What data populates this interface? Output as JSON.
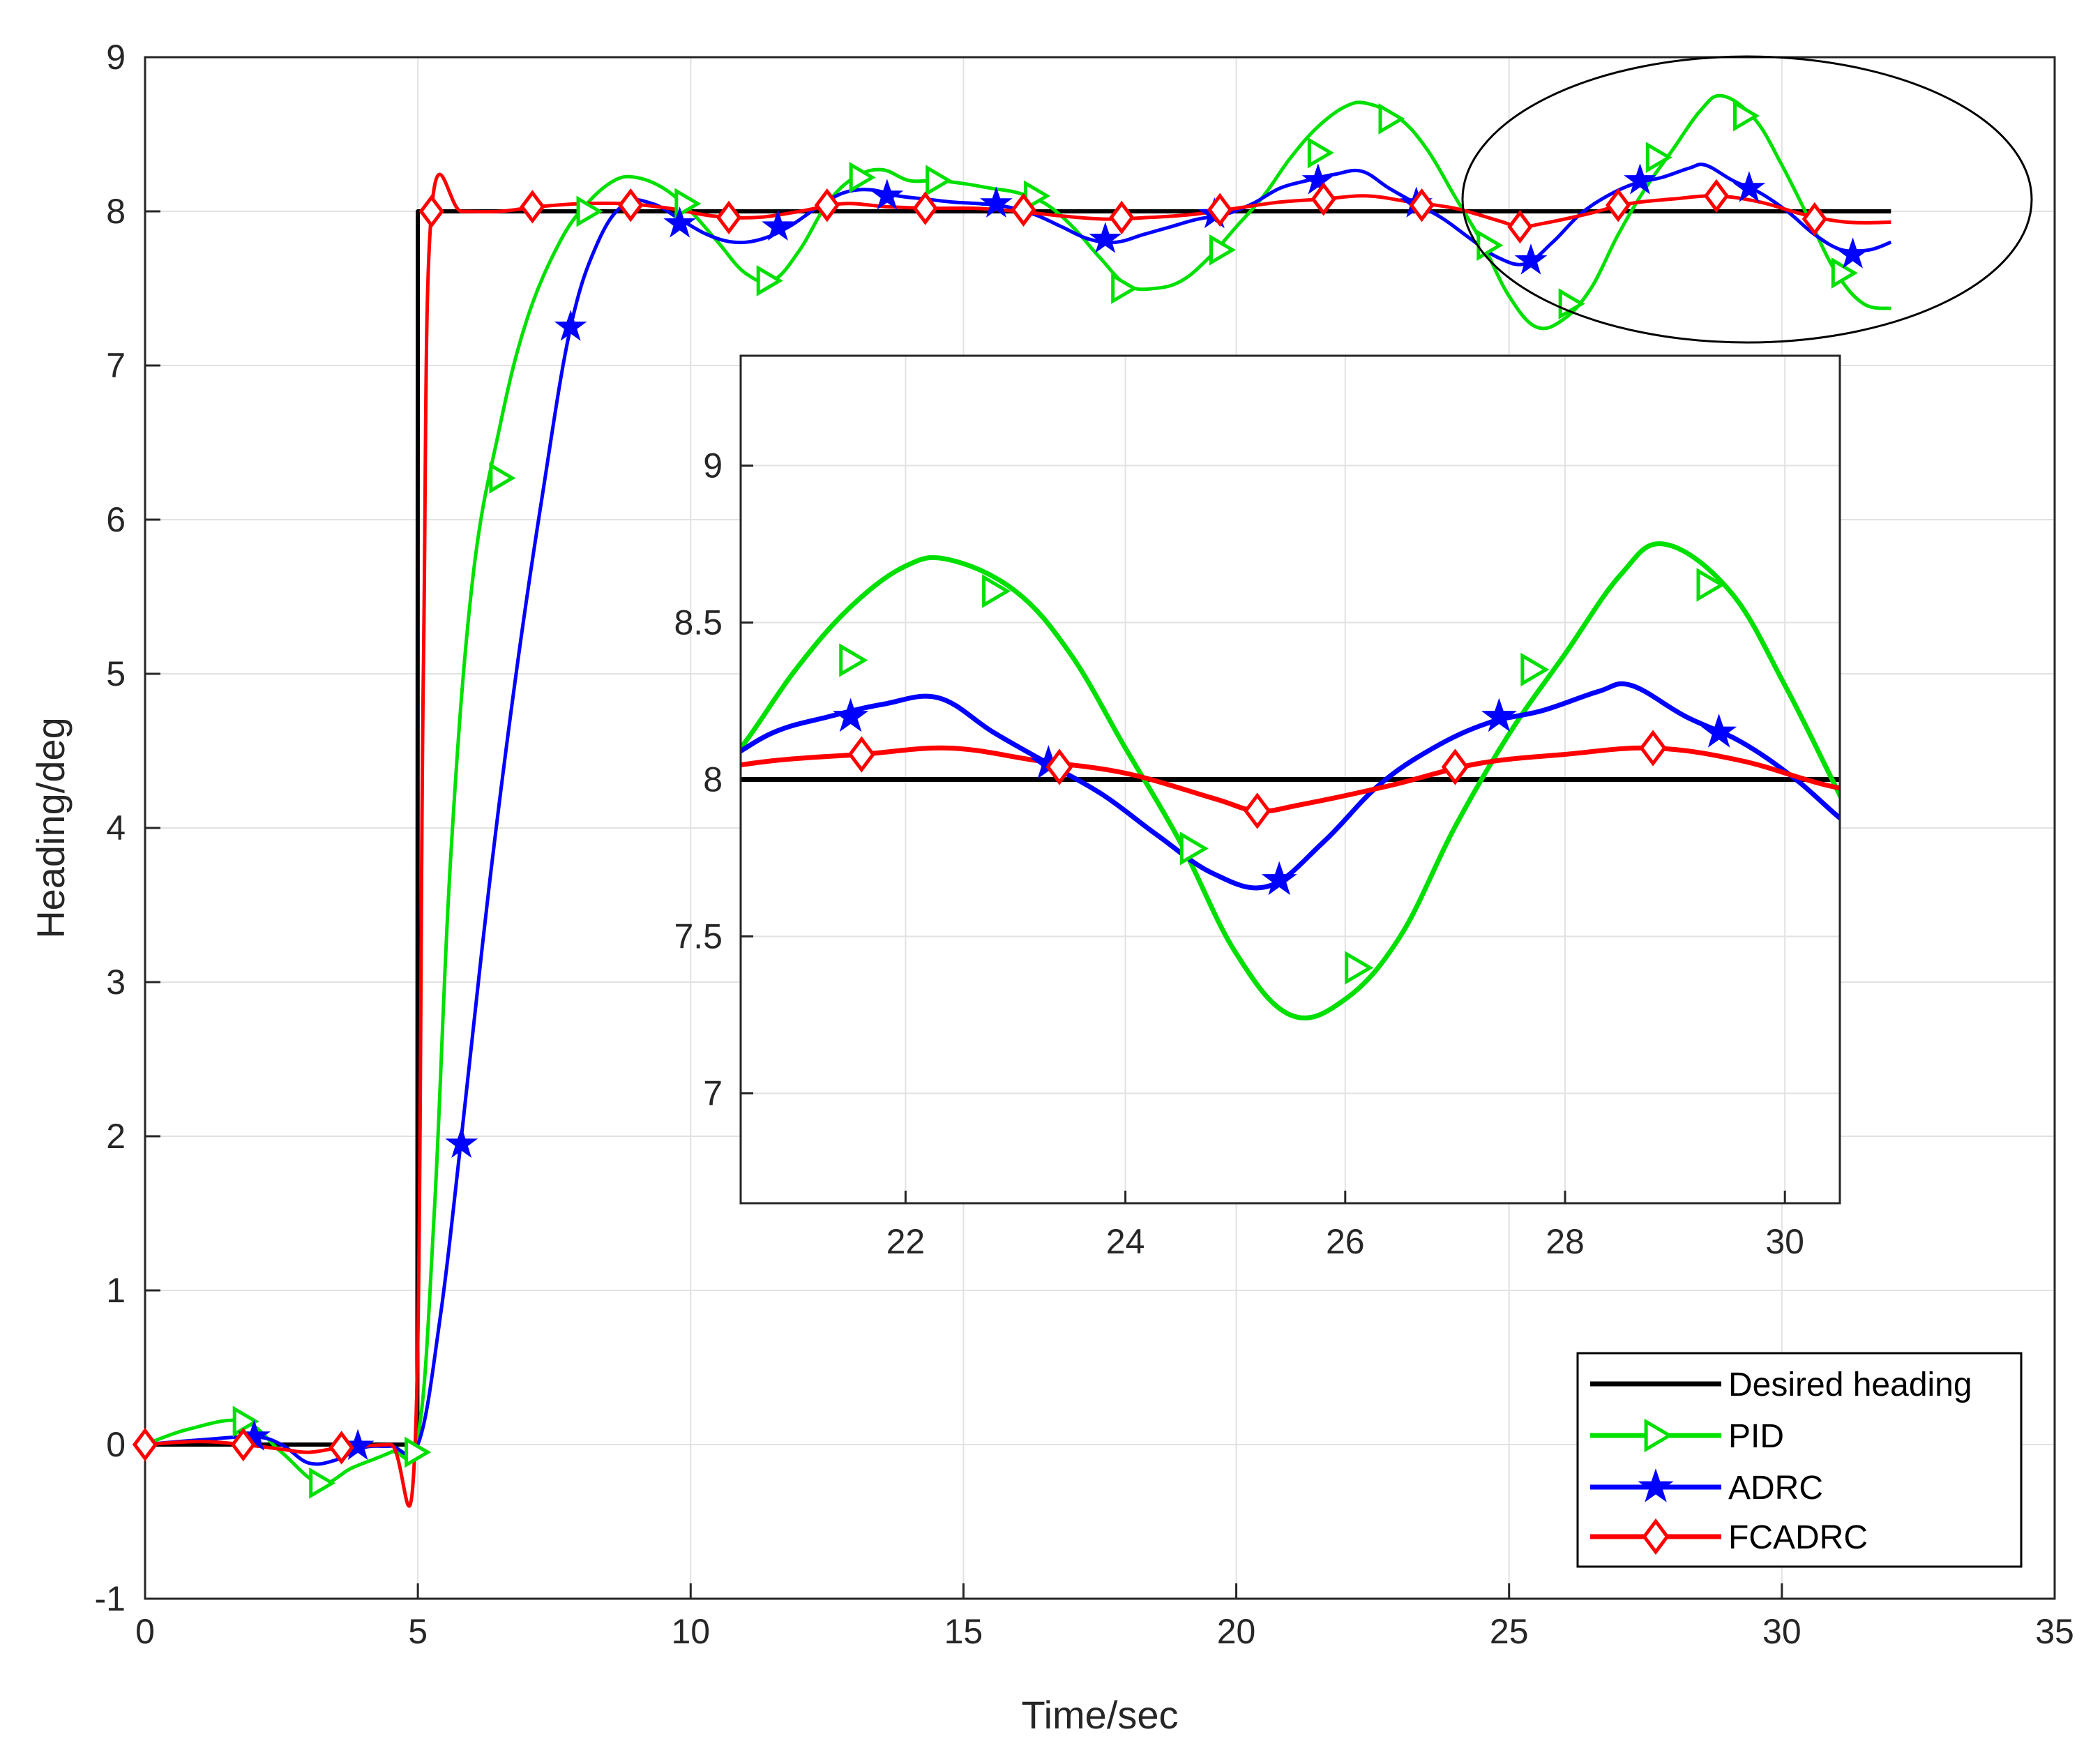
{
  "chart_data": [
    {
      "type": "line",
      "role": "main",
      "xlabel": "Time/sec",
      "ylabel": "Heading/deg",
      "xlim": [
        0,
        35
      ],
      "ylim": [
        -1,
        9
      ],
      "xticks": [
        "0",
        "5",
        "10",
        "15",
        "20",
        "25",
        "30",
        "35"
      ],
      "yticks": [
        "-1",
        "0",
        "1",
        "2",
        "3",
        "4",
        "5",
        "6",
        "7",
        "8",
        "9"
      ],
      "grid": true,
      "legend_position": "bottom-right",
      "series": [
        {
          "name": "Desired heading",
          "color": "#000000",
          "marker": "none",
          "x": [
            0,
            4.99,
            5.0,
            32
          ],
          "y": [
            0,
            0,
            8,
            8
          ]
        },
        {
          "name": "PID",
          "color": "#00e000",
          "marker": "triangle-right",
          "x": [
            0,
            0.8,
            1.8,
            2.5,
            3.2,
            3.8,
            4.5,
            5.0,
            5.3,
            5.6,
            6.0,
            6.5,
            7.0,
            7.6,
            8.1,
            8.6,
            9.0,
            9.5,
            10.0,
            10.5,
            11.0,
            11.5,
            12.0,
            12.5,
            13.0,
            13.5,
            14.0,
            14.5,
            15.0,
            15.5,
            16.0,
            16.5,
            17.0,
            17.5,
            18.0,
            18.5,
            19.0,
            19.5,
            20.0,
            20.5,
            21.0,
            21.5,
            22.0,
            22.4,
            23.0,
            23.5,
            24.0,
            24.5,
            25.0,
            25.5,
            26.0,
            26.5,
            27.0,
            27.5,
            28.0,
            28.5,
            28.9,
            29.5,
            30.0,
            30.5,
            31.0,
            31.5,
            32.0
          ],
          "y": [
            0,
            0.1,
            0.15,
            -0.05,
            -0.25,
            -0.15,
            -0.05,
            0.05,
            1.5,
            3.8,
            5.6,
            6.6,
            7.3,
            7.8,
            8.05,
            8.2,
            8.22,
            8.15,
            8.0,
            7.8,
            7.6,
            7.55,
            7.75,
            8.05,
            8.22,
            8.27,
            8.2,
            8.2,
            8.18,
            8.15,
            8.12,
            8.05,
            7.9,
            7.7,
            7.52,
            7.5,
            7.55,
            7.7,
            7.9,
            8.1,
            8.35,
            8.55,
            8.68,
            8.7,
            8.6,
            8.4,
            8.1,
            7.8,
            7.45,
            7.25,
            7.3,
            7.5,
            7.85,
            8.15,
            8.4,
            8.65,
            8.75,
            8.6,
            8.3,
            7.95,
            7.6,
            7.4,
            7.37
          ],
          "marker_x": [
            1.8,
            3.2,
            4.95,
            6.5,
            8.1,
            9.9,
            11.4,
            13.1,
            14.5,
            16.3,
            17.9,
            19.7,
            21.5,
            22.8,
            24.6,
            26.1,
            27.7,
            29.3,
            31.1
          ],
          "marker_y": [
            0.15,
            -0.25,
            -0.05,
            6.27,
            8.0,
            8.05,
            7.55,
            8.22,
            8.2,
            8.1,
            7.5,
            7.75,
            8.38,
            8.6,
            7.78,
            7.4,
            8.35,
            8.62,
            7.6
          ]
        },
        {
          "name": "ADRC",
          "color": "#0000ff",
          "marker": "star",
          "x": [
            0,
            1.0,
            2.0,
            2.5,
            3.0,
            3.5,
            4.0,
            4.5,
            5.0,
            5.4,
            5.8,
            6.3,
            6.8,
            7.3,
            7.8,
            8.3,
            8.8,
            9.3,
            9.8,
            10.3,
            10.8,
            11.3,
            11.8,
            12.3,
            12.8,
            13.3,
            13.8,
            14.3,
            14.8,
            15.3,
            15.8,
            16.3,
            16.8,
            17.3,
            17.8,
            18.3,
            18.8,
            19.3,
            19.8,
            20.3,
            20.8,
            21.3,
            21.8,
            22.3,
            22.8,
            23.3,
            23.8,
            24.3,
            24.8,
            25.3,
            25.8,
            26.3,
            26.8,
            27.3,
            27.8,
            28.3,
            28.6,
            29.1,
            29.6,
            30.1,
            30.6,
            31.1,
            31.6,
            32.0
          ],
          "y": [
            0,
            0.03,
            0.05,
            0.0,
            -0.12,
            -0.1,
            -0.02,
            -0.01,
            0.0,
            0.8,
            2.0,
            3.6,
            5.0,
            6.2,
            7.25,
            7.8,
            8.05,
            8.05,
            7.95,
            7.85,
            7.8,
            7.82,
            7.9,
            8.02,
            8.12,
            8.14,
            8.1,
            8.08,
            8.06,
            8.05,
            8.03,
            7.98,
            7.9,
            7.82,
            7.8,
            7.85,
            7.9,
            7.95,
            7.98,
            8.05,
            8.15,
            8.2,
            8.24,
            8.26,
            8.15,
            8.05,
            7.95,
            7.82,
            7.7,
            7.66,
            7.8,
            7.98,
            8.1,
            8.18,
            8.22,
            8.28,
            8.3,
            8.2,
            8.12,
            8.0,
            7.85,
            7.75,
            7.75,
            7.8
          ],
          "marker_x": [
            2.0,
            3.9,
            5.8,
            7.8,
            9.8,
            11.6,
            13.6,
            15.6,
            17.6,
            19.6,
            21.5,
            23.3,
            25.4,
            27.4,
            29.4,
            31.3
          ],
          "marker_y": [
            0.05,
            -0.01,
            1.95,
            7.25,
            7.92,
            7.9,
            8.1,
            8.05,
            7.82,
            7.98,
            8.2,
            8.05,
            7.68,
            8.2,
            8.15,
            7.72
          ]
        },
        {
          "name": "FCADRC",
          "color": "#ff0000",
          "marker": "diamond",
          "x": [
            0,
            1.0,
            1.8,
            2.5,
            3.0,
            3.6,
            4.5,
            4.95,
            5.1,
            5.25,
            5.8,
            6.5,
            7.2,
            8.0,
            8.8,
            9.6,
            10.4,
            11.2,
            12.0,
            12.8,
            13.6,
            14.4,
            15.2,
            16.0,
            16.8,
            17.6,
            18.4,
            19.2,
            20.0,
            20.8,
            21.6,
            22.4,
            23.2,
            24.0,
            24.8,
            25.2,
            25.6,
            26.4,
            27.2,
            28.0,
            28.8,
            29.6,
            30.4,
            31.2,
            32.0
          ],
          "y": [
            0,
            0.02,
            0.0,
            -0.03,
            -0.05,
            -0.02,
            0.0,
            0.0,
            5.0,
            8.0,
            8.0,
            8.0,
            8.03,
            8.05,
            8.05,
            8.02,
            7.97,
            7.96,
            8.0,
            8.05,
            8.03,
            8.02,
            8.02,
            8.0,
            7.97,
            7.95,
            7.96,
            7.98,
            8.02,
            8.06,
            8.08,
            8.1,
            8.06,
            8.02,
            7.94,
            7.9,
            7.92,
            7.98,
            8.05,
            8.08,
            8.1,
            8.06,
            7.98,
            7.93,
            7.93
          ],
          "marker_x": [
            0,
            1.8,
            3.6,
            5.25,
            7.1,
            8.9,
            10.7,
            12.5,
            14.3,
            16.1,
            17.9,
            19.7,
            21.6,
            23.4,
            25.2,
            27.0,
            28.8,
            30.6
          ],
          "marker_y": [
            0,
            0.0,
            -0.02,
            8.0,
            8.03,
            8.04,
            7.96,
            8.04,
            8.02,
            8.01,
            7.96,
            8.01,
            8.08,
            8.04,
            7.9,
            8.04,
            8.1,
            7.95
          ]
        }
      ],
      "annotations": [
        "ellipse-around-20.5-31.0"
      ]
    },
    {
      "type": "line",
      "role": "inset-zoom",
      "xlim": [
        20.5,
        30.5
      ],
      "ylim": [
        6.65,
        9.35
      ],
      "xticks": [
        "22",
        "24",
        "26",
        "28",
        "30"
      ],
      "yticks": [
        "7",
        "7.5",
        "8",
        "8.5",
        "9"
      ],
      "grid": true
    }
  ]
}
